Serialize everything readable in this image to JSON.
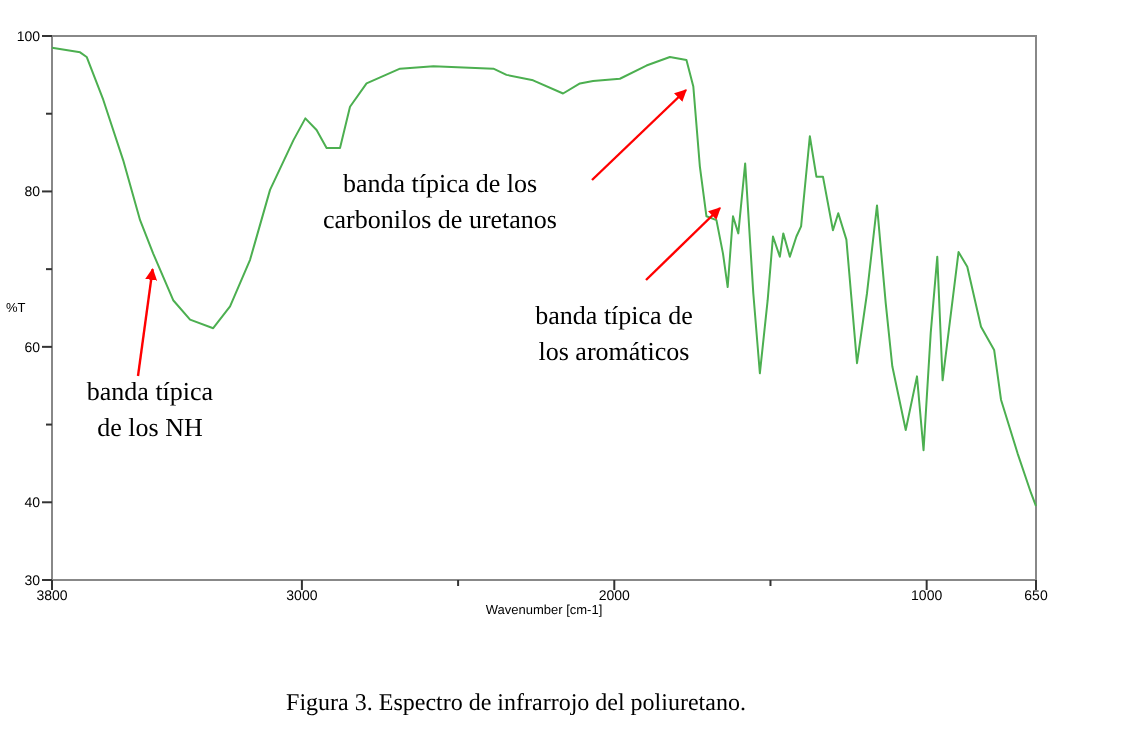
{
  "chart_data": {
    "type": "line",
    "xlabel": "Wavenumber [cm-1]",
    "ylabel": "%T",
    "xlim": [
      3800,
      650
    ],
    "xticks": [
      3800,
      3000,
      {
        "value": 2500,
        "label": null
      },
      2000,
      {
        "value": 1500,
        "label": null
      },
      1000,
      650
    ],
    "ylim": [
      30,
      100
    ],
    "yticks": [
      30,
      40,
      {
        "value": 50,
        "label": null
      },
      60,
      {
        "value": 70,
        "label": null
      },
      80,
      {
        "value": 90,
        "label": null
      },
      100
    ],
    "grid": false,
    "marker": "none",
    "line_style": "solid",
    "series": [
      {
        "color": "#4caf50",
        "x": [
          3800,
          3710,
          3689,
          3636,
          3572,
          3518,
          3476,
          3412,
          3358,
          3284,
          3230,
          3166,
          3102,
          3027,
          2989,
          2953,
          2921,
          2878,
          2846,
          2793,
          2686,
          2579,
          2387,
          2345,
          2260,
          2164,
          2110,
          2068,
          1982,
          1897,
          1822,
          1769,
          1747,
          1726,
          1705,
          1673,
          1652,
          1637,
          1620,
          1603,
          1581,
          1555,
          1534,
          1509,
          1492,
          1470,
          1459,
          1438,
          1417,
          1402,
          1374,
          1353,
          1332,
          1300,
          1283,
          1257,
          1223,
          1191,
          1159,
          1131,
          1110,
          1067,
          1031,
          1010,
          987,
          966,
          949,
          898,
          870,
          826,
          784,
          762,
          709,
          666,
          650
        ],
        "values": [
          98.5,
          97.9,
          97.3,
          91.8,
          84,
          76.3,
          72,
          66,
          63.5,
          62.4,
          65.2,
          71.2,
          80.2,
          86.6,
          89.4,
          87.9,
          85.6,
          85.6,
          90.9,
          93.9,
          95.8,
          96.1,
          95.8,
          95,
          94.3,
          92.6,
          93.9,
          94.2,
          94.5,
          96.2,
          97.3,
          96.9,
          93.5,
          83.2,
          76.8,
          76.3,
          72,
          67.7,
          76.8,
          74.6,
          83.6,
          66.9,
          56.6,
          66,
          74.2,
          71.6,
          74.6,
          71.6,
          74.2,
          75.5,
          87.1,
          81.9,
          81.9,
          75,
          77.2,
          73.8,
          57.9,
          66.9,
          78.2,
          65.6,
          57.5,
          49.3,
          56.2,
          46.7,
          61.8,
          71.6,
          55.7,
          72.2,
          70.3,
          62.6,
          59.6,
          53.2,
          46.3,
          41.2,
          39.5
        ]
      }
    ],
    "annotations": [
      {
        "text": "banda típica\nde los NH",
        "x": 3478,
        "y": 70
      },
      "banda típica de los\ncarbonilos de uretanos",
      "banda típica de\nlos aromáticos",
      "Figura 3. Espectro de infrarrojo del poliuretano."
    ]
  }
}
